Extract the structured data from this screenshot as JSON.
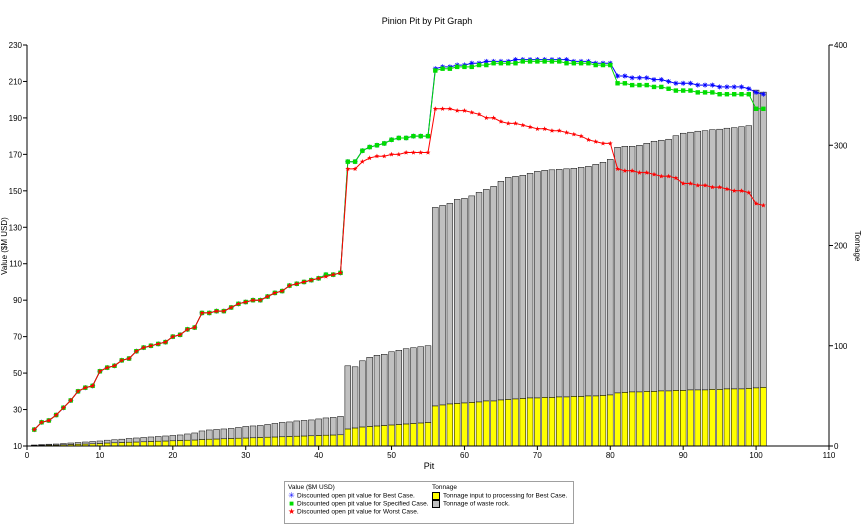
{
  "chart_data": {
    "type": "bar+line",
    "title": "Pinion Pit by Pit Graph",
    "xlabel": "Pit",
    "ylabel_left": "Value ($M USD)",
    "ylabel_right": "Tonnage",
    "xlim": [
      0,
      110
    ],
    "ylim_left": [
      10,
      230
    ],
    "ylim_right": [
      0,
      400
    ],
    "x_ticks": [
      0,
      10,
      20,
      30,
      40,
      50,
      60,
      70,
      80,
      90,
      100,
      110
    ],
    "y_left_ticks": [
      10,
      30,
      50,
      70,
      90,
      110,
      130,
      150,
      170,
      190,
      210,
      230
    ],
    "y_right_ticks": [
      0,
      100,
      200,
      300,
      400
    ],
    "legend": {
      "value_header": "Value ($M USD)",
      "tonnage_header": "Tonnage",
      "items": [
        {
          "label": "Discounted open pit value for Best Case.",
          "color": "#0000ff",
          "symbol": "✳"
        },
        {
          "label": "Discounted open pit value for Specified Case.",
          "color": "#00dd00",
          "symbol": "■"
        },
        {
          "label": "Discounted open pit value for Worst Case.",
          "color": "#ff0000",
          "symbol": "★"
        },
        {
          "label": "Tonnage input to processing for Best Case.",
          "color": "#ffff00"
        },
        {
          "label": "Tonnage of waste rock.",
          "color": "#c0c0c0"
        }
      ]
    },
    "pits": [
      1,
      2,
      3,
      4,
      5,
      6,
      7,
      8,
      9,
      10,
      11,
      12,
      13,
      14,
      15,
      16,
      17,
      18,
      19,
      20,
      21,
      22,
      23,
      24,
      25,
      26,
      27,
      28,
      29,
      30,
      31,
      32,
      33,
      34,
      35,
      36,
      37,
      38,
      39,
      40,
      41,
      42,
      43,
      44,
      45,
      46,
      47,
      48,
      49,
      50,
      51,
      52,
      53,
      54,
      55,
      56,
      57,
      58,
      59,
      60,
      61,
      62,
      63,
      64,
      65,
      66,
      67,
      68,
      69,
      70,
      71,
      72,
      73,
      74,
      75,
      76,
      77,
      78,
      79,
      80,
      81,
      82,
      83,
      84,
      85,
      86,
      87,
      88,
      89,
      90,
      91,
      92,
      93,
      94,
      95,
      96,
      97,
      98,
      99,
      100,
      101
    ],
    "series": [
      {
        "name": "Discounted open pit value for Best Case.",
        "kind": "line",
        "axis": "left",
        "color": "#0000ff",
        "values": [
          19,
          23,
          24,
          27,
          31,
          35,
          40,
          42,
          43,
          51,
          53,
          54,
          57,
          58,
          62,
          64,
          65,
          66,
          67,
          70,
          71,
          74,
          75,
          83,
          83,
          84,
          84,
          86,
          88,
          89,
          90,
          90,
          92,
          94,
          95,
          98,
          99,
          100,
          101,
          102,
          104,
          104,
          105,
          166,
          166,
          172,
          174,
          175,
          176,
          178,
          179,
          179,
          180,
          180,
          180,
          217,
          218,
          218,
          219,
          219,
          220,
          220,
          221,
          221,
          221,
          221,
          222,
          222,
          222,
          222,
          222,
          222,
          222,
          222,
          221,
          221,
          221,
          220,
          220,
          220,
          213,
          213,
          212,
          212,
          212,
          211,
          211,
          210,
          209,
          209,
          209,
          208,
          208,
          208,
          207,
          207,
          207,
          207,
          206,
          204,
          203
        ]
      },
      {
        "name": "Discounted open pit value for Specified Case.",
        "kind": "line",
        "axis": "left",
        "color": "#00dd00",
        "values": [
          19,
          23,
          24,
          27,
          31,
          35,
          40,
          42,
          43,
          51,
          53,
          54,
          57,
          58,
          62,
          64,
          65,
          66,
          67,
          70,
          71,
          74,
          75,
          83,
          83,
          84,
          84,
          86,
          88,
          89,
          90,
          90,
          92,
          94,
          95,
          98,
          99,
          100,
          101,
          102,
          104,
          104,
          105,
          166,
          166,
          172,
          174,
          175,
          176,
          178,
          179,
          179,
          180,
          180,
          180,
          216,
          217,
          217,
          218,
          218,
          218,
          219,
          219,
          220,
          220,
          220,
          220,
          221,
          221,
          221,
          221,
          221,
          221,
          220,
          220,
          220,
          220,
          219,
          219,
          219,
          209,
          209,
          208,
          208,
          208,
          207,
          207,
          206,
          205,
          205,
          205,
          204,
          204,
          204,
          203,
          203,
          203,
          203,
          203,
          195,
          195
        ]
      },
      {
        "name": "Discounted open pit value for Worst Case.",
        "kind": "line",
        "axis": "left",
        "color": "#ff0000",
        "values": [
          19,
          23,
          24,
          27,
          31,
          35,
          40,
          42,
          43,
          51,
          53,
          54,
          57,
          58,
          62,
          64,
          65,
          66,
          67,
          70,
          71,
          74,
          75,
          83,
          83,
          84,
          84,
          86,
          88,
          89,
          90,
          90,
          92,
          94,
          95,
          98,
          99,
          100,
          101,
          102,
          103,
          104,
          105,
          162,
          162,
          166,
          168,
          169,
          169,
          170,
          170,
          171,
          171,
          171,
          171,
          195,
          195,
          195,
          194,
          194,
          193,
          192,
          190,
          190,
          188,
          187,
          187,
          186,
          185,
          184,
          184,
          183,
          183,
          182,
          181,
          180,
          178,
          177,
          176,
          176,
          162,
          161,
          161,
          160,
          160,
          159,
          158,
          158,
          157,
          154,
          154,
          153,
          153,
          152,
          152,
          151,
          150,
          150,
          149,
          143,
          142
        ]
      },
      {
        "name": "Tonnage input to processing for Best Case.",
        "kind": "bar",
        "axis": "right",
        "color": "#ffff00",
        "values": [
          0.5,
          0.8,
          1,
          1,
          1.2,
          1.5,
          1.8,
          2,
          2.2,
          2.5,
          3,
          3.2,
          3.5,
          3.8,
          4,
          4.2,
          4.5,
          4.8,
          5,
          5.2,
          5.5,
          5.8,
          6,
          6.5,
          6.8,
          7,
          7.2,
          7.5,
          7.8,
          8,
          8.2,
          8.5,
          8.8,
          9,
          9.2,
          9.5,
          9.8,
          10,
          10.2,
          10.5,
          10.8,
          11,
          11.2,
          17,
          18,
          19,
          19.5,
          20,
          20.5,
          21,
          21.5,
          22,
          22.5,
          23,
          23.5,
          40,
          41,
          42,
          42.5,
          43,
          43.5,
          44,
          45,
          45,
          46,
          46.5,
          47,
          47.5,
          48,
          48,
          48.5,
          48.5,
          49,
          49,
          49.5,
          49.5,
          50,
          50,
          50.5,
          51,
          53,
          53.5,
          54,
          54,
          54.5,
          54.5,
          55,
          55,
          55.5,
          55.5,
          56,
          56,
          56,
          56.5,
          56.5,
          57,
          57,
          57,
          57.5,
          58,
          58.5
        ]
      },
      {
        "name": "Tonnage of waste rock.",
        "kind": "bar",
        "axis": "right",
        "stacked": true,
        "color": "#c0c0c0",
        "values": [
          0.5,
          0.7,
          0.8,
          1,
          1.3,
          1.5,
          1.7,
          2,
          2.3,
          2.5,
          2.8,
          3,
          3.3,
          3.7,
          4,
          4.3,
          4.5,
          4.7,
          5,
          5.3,
          5.5,
          6.2,
          7,
          8.5,
          9.2,
          9.5,
          9.8,
          10,
          10.7,
          11.5,
          11.8,
          12,
          12.7,
          13.5,
          14.3,
          14.5,
          15.2,
          15.5,
          15.8,
          16.5,
          17.2,
          17.5,
          18.3,
          63,
          61,
          66,
          69,
          70.5,
          71,
          73,
          74,
          75,
          75.5,
          76,
          76.5,
          198,
          199,
          200,
          203.5,
          204,
          206,
          209,
          211,
          214,
          218,
          221.5,
          222,
          222.5,
          224,
          226,
          226.5,
          227,
          227,
          227.5,
          227.5,
          228.5,
          229,
          231,
          232.5,
          235,
          245,
          245.5,
          245,
          246,
          247.5,
          249.5,
          250,
          251,
          254,
          256.5,
          257,
          258,
          258.5,
          259,
          259.5,
          260,
          260.5,
          261.5,
          262,
          297,
          294.5
        ]
      }
    ]
  }
}
